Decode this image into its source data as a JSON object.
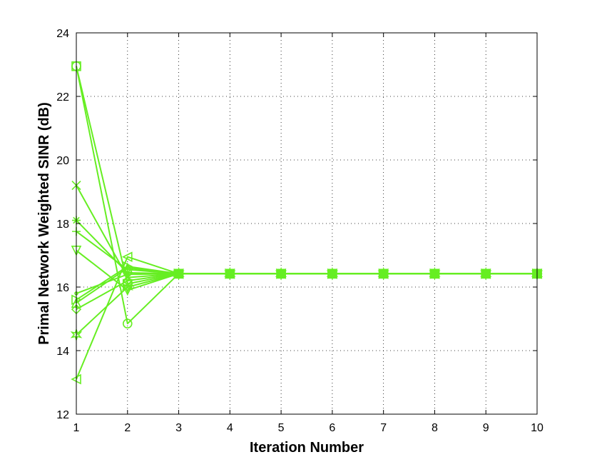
{
  "chart_data": {
    "type": "line",
    "xlabel": "Iteration Number",
    "ylabel": "Primal Network Weighted SINR (dB)",
    "xlim": [
      1,
      10
    ],
    "ylim": [
      12,
      24
    ],
    "xticks": [
      1,
      2,
      3,
      4,
      5,
      6,
      7,
      8,
      9,
      10
    ],
    "yticks": [
      12,
      14,
      16,
      18,
      20,
      22,
      24
    ],
    "grid": true,
    "legend": "none",
    "color": "#66ee22",
    "x": [
      1,
      2,
      3,
      4,
      5,
      6,
      7,
      8,
      9,
      10
    ],
    "series": [
      {
        "marker": "circle",
        "values": [
          22.95,
          14.85,
          16.42,
          16.42,
          16.42,
          16.42,
          16.42,
          16.42,
          16.42,
          16.42
        ]
      },
      {
        "marker": "square",
        "values": [
          22.95,
          16.1,
          16.42,
          16.42,
          16.42,
          16.42,
          16.42,
          16.42,
          16.42,
          16.42
        ]
      },
      {
        "marker": "x",
        "values": [
          19.2,
          16.3,
          16.42,
          16.42,
          16.42,
          16.42,
          16.42,
          16.42,
          16.42,
          16.42
        ]
      },
      {
        "marker": "star",
        "values": [
          18.1,
          16.45,
          16.42,
          16.42,
          16.42,
          16.42,
          16.42,
          16.42,
          16.42,
          16.42
        ]
      },
      {
        "marker": "plus",
        "values": [
          17.75,
          16.55,
          16.42,
          16.42,
          16.42,
          16.42,
          16.42,
          16.42,
          16.42,
          16.42
        ]
      },
      {
        "marker": "triangle-down",
        "values": [
          17.15,
          15.9,
          16.42,
          16.42,
          16.42,
          16.42,
          16.42,
          16.42,
          16.42,
          16.42
        ]
      },
      {
        "marker": "point",
        "values": [
          15.8,
          16.4,
          16.42,
          16.42,
          16.42,
          16.42,
          16.42,
          16.42,
          16.42,
          16.42
        ]
      },
      {
        "marker": "triangle-up",
        "values": [
          15.5,
          16.6,
          16.42,
          16.42,
          16.42,
          16.42,
          16.42,
          16.42,
          16.42,
          16.42
        ]
      },
      {
        "marker": "diamond",
        "values": [
          15.3,
          16.2,
          16.42,
          16.42,
          16.42,
          16.42,
          16.42,
          16.42,
          16.42,
          16.42
        ]
      },
      {
        "marker": "hexagram",
        "values": [
          14.5,
          16.0,
          16.42,
          16.42,
          16.42,
          16.42,
          16.42,
          16.42,
          16.42,
          16.42
        ]
      },
      {
        "marker": "triangle-left",
        "values": [
          13.1,
          16.95,
          16.42,
          16.42,
          16.42,
          16.42,
          16.42,
          16.42,
          16.42,
          16.42
        ]
      },
      {
        "marker": "triangle-right",
        "values": [
          15.6,
          16.65,
          16.42,
          16.42,
          16.42,
          16.42,
          16.42,
          16.42,
          16.42,
          16.42
        ]
      }
    ]
  }
}
